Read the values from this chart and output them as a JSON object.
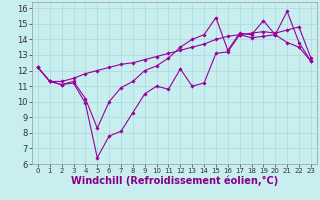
{
  "title": "",
  "xlabel": "Windchill (Refroidissement éolien,°C)",
  "ylabel": "",
  "bg_color": "#c8eef0",
  "line_color": "#990099",
  "grid_color": "#b0dde0",
  "xlim": [
    -0.5,
    23.5
  ],
  "ylim": [
    6,
    16.4
  ],
  "xticks": [
    0,
    1,
    2,
    3,
    4,
    5,
    6,
    7,
    8,
    9,
    10,
    11,
    12,
    13,
    14,
    15,
    16,
    17,
    18,
    19,
    20,
    21,
    22,
    23
  ],
  "yticks": [
    6,
    7,
    8,
    9,
    10,
    11,
    12,
    13,
    14,
    15,
    16
  ],
  "x_data": [
    0,
    1,
    2,
    3,
    4,
    5,
    6,
    7,
    8,
    9,
    10,
    11,
    12,
    13,
    14,
    15,
    16,
    17,
    18,
    19,
    20,
    21,
    22,
    23
  ],
  "line1": [
    12.2,
    11.3,
    11.1,
    11.2,
    9.9,
    6.4,
    7.8,
    8.1,
    9.3,
    10.5,
    11.0,
    10.8,
    12.1,
    11.0,
    11.2,
    13.1,
    13.2,
    14.3,
    14.1,
    14.2,
    14.3,
    13.8,
    13.5,
    12.6
  ],
  "line2": [
    12.2,
    11.3,
    11.1,
    11.3,
    10.2,
    8.3,
    10.0,
    10.9,
    11.3,
    12.0,
    12.3,
    12.8,
    13.5,
    14.0,
    14.3,
    15.4,
    13.3,
    14.4,
    14.3,
    15.2,
    14.3,
    15.8,
    13.8,
    12.6
  ],
  "line3": [
    12.2,
    11.3,
    11.3,
    11.5,
    11.8,
    12.0,
    12.2,
    12.4,
    12.5,
    12.7,
    12.9,
    13.1,
    13.3,
    13.5,
    13.7,
    14.0,
    14.2,
    14.3,
    14.4,
    14.5,
    14.4,
    14.6,
    14.8,
    12.8
  ],
  "xlabel_color": "#880088",
  "tick_color": "#333333",
  "xlabel_fontsize": 7,
  "tick_fontsize_x": 5,
  "tick_fontsize_y": 6
}
